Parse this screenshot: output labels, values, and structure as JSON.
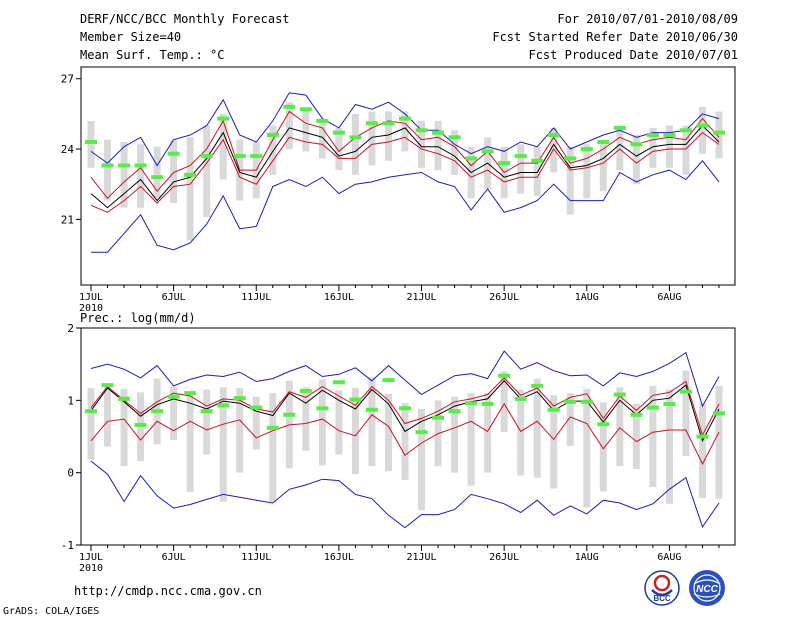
{
  "header": {
    "title": "DERF/NCC/BCC Monthly Forecast",
    "member_size": "Member Size=40",
    "variable": "Mean Surf. Temp.: °C",
    "period": "For 2010/07/01-2010/08/09",
    "started": "Fcst Started Refer Date 2010/06/30",
    "produced": "Fcst Produced Date 2010/07/01"
  },
  "footer": {
    "url": "http://cmdp.ncc.cma.gov.cn",
    "credit": "GrADS: COLA/IGES",
    "logo_bcc": "BCC",
    "logo_ncc": "NCC"
  },
  "colors": {
    "envelope": "#1a1acc",
    "spread": "#cc1122",
    "mean": "#000000",
    "obs": "#55ee44",
    "box": "#d9d9d9"
  },
  "chart_data": [
    {
      "type": "line",
      "title": "Mean Surf. Temp.: °C",
      "x_tick_labels": [
        "1JUL",
        "6JUL",
        "11JUL",
        "16JUL",
        "21JUL",
        "26JUL",
        "1AUG",
        "6AUG"
      ],
      "x_year": "2010",
      "ylim": [
        18.2,
        27.5
      ],
      "yticks": [
        21,
        24,
        27
      ],
      "series": [
        {
          "name": "max",
          "values": [
            23.9,
            23.4,
            24.1,
            24.5,
            23.3,
            24.4,
            24.6,
            25.0,
            26.1,
            24.6,
            24.3,
            25.2,
            26.4,
            26.3,
            25.3,
            24.9,
            25.9,
            25.7,
            26.0,
            25.5,
            24.8,
            24.8,
            24.2,
            23.8,
            24.1,
            23.9,
            24.3,
            24.1,
            24.9,
            24.0,
            24.3,
            24.6,
            24.8,
            24.5,
            24.7,
            24.7,
            24.8,
            25.5,
            25.3
          ]
        },
        {
          "name": "upper",
          "values": [
            22.8,
            21.9,
            22.6,
            23.2,
            22.2,
            23.0,
            23.3,
            24.0,
            25.2,
            23.1,
            23.1,
            24.4,
            25.6,
            25.1,
            24.9,
            23.9,
            24.5,
            24.9,
            25.2,
            25.1,
            24.4,
            24.5,
            24.1,
            23.3,
            23.9,
            23.0,
            23.4,
            23.4,
            24.5,
            23.4,
            23.6,
            24.0,
            24.5,
            24.2,
            24.4,
            24.5,
            24.4,
            25.3,
            24.5
          ]
        },
        {
          "name": "mean",
          "values": [
            22.1,
            21.5,
            22.1,
            22.7,
            21.8,
            22.6,
            22.8,
            23.6,
            24.7,
            23.0,
            22.8,
            23.9,
            24.9,
            24.7,
            24.5,
            23.7,
            23.9,
            24.5,
            24.6,
            24.9,
            24.1,
            24.1,
            23.7,
            23.0,
            23.4,
            22.8,
            23.0,
            23.0,
            24.2,
            23.2,
            23.3,
            23.6,
            24.2,
            23.7,
            24.1,
            24.2,
            24.2,
            25.0,
            24.3
          ]
        },
        {
          "name": "lower",
          "values": [
            21.6,
            21.3,
            21.8,
            22.4,
            21.7,
            22.4,
            22.5,
            23.4,
            24.4,
            22.8,
            22.5,
            23.5,
            24.5,
            24.3,
            24.2,
            23.6,
            23.6,
            24.2,
            24.3,
            24.5,
            24.0,
            23.8,
            23.5,
            22.8,
            23.1,
            22.6,
            22.8,
            22.8,
            24.0,
            23.1,
            23.2,
            23.4,
            24.0,
            23.4,
            23.9,
            24.0,
            24.0,
            24.7,
            24.2
          ]
        },
        {
          "name": "min",
          "values": [
            19.6,
            19.6,
            20.4,
            21.2,
            19.9,
            19.7,
            20.0,
            20.8,
            22.0,
            20.6,
            20.7,
            22.4,
            22.7,
            22.4,
            22.8,
            22.1,
            22.5,
            22.6,
            22.8,
            22.9,
            23.0,
            22.6,
            22.4,
            21.4,
            22.3,
            21.3,
            21.5,
            21.8,
            22.5,
            21.8,
            21.8,
            21.8,
            23.0,
            22.6,
            22.9,
            23.1,
            22.7,
            23.5,
            22.6
          ]
        },
        {
          "name": "obs",
          "values": [
            24.3,
            23.3,
            23.3,
            23.3,
            22.8,
            23.8,
            22.9,
            23.7,
            25.3,
            23.7,
            23.7,
            24.6,
            25.8,
            25.7,
            25.2,
            24.7,
            24.5,
            25.1,
            25.1,
            25.3,
            24.8,
            24.7,
            24.5,
            23.6,
            23.9,
            23.4,
            23.7,
            23.5,
            24.6,
            23.6,
            24.0,
            24.3,
            24.9,
            24.2,
            24.6,
            24.6,
            24.8,
            25.0,
            24.7
          ]
        },
        {
          "name": "box_high",
          "values": [
            25.2,
            24.4,
            24.3,
            24.2,
            24.1,
            24.4,
            24.5,
            25.0,
            25.5,
            24.4,
            24.3,
            25.0,
            26.0,
            25.7,
            25.1,
            24.9,
            25.5,
            25.6,
            25.6,
            25.6,
            25.2,
            25.2,
            24.8,
            24.1,
            24.5,
            24.1,
            24.2,
            24.1,
            24.9,
            24.1,
            24.2,
            24.3,
            25.0,
            24.6,
            24.9,
            25.0,
            25.0,
            25.8,
            25.6
          ]
        },
        {
          "name": "box_low",
          "values": [
            23.2,
            21.8,
            21.5,
            21.5,
            21.9,
            21.7,
            20.1,
            21.1,
            22.7,
            21.8,
            21.9,
            22.9,
            24.0,
            23.9,
            23.6,
            23.1,
            22.9,
            23.3,
            23.5,
            23.9,
            23.2,
            23.1,
            22.9,
            21.9,
            22.3,
            21.9,
            22.1,
            22.0,
            23.0,
            21.2,
            21.9,
            22.2,
            23.1,
            22.5,
            23.2,
            23.2,
            22.9,
            23.8,
            23.6
          ]
        }
      ]
    },
    {
      "type": "line",
      "title": "Prec.: log(mm/d)",
      "x_tick_labels": [
        "1JUL",
        "6JUL",
        "11JUL",
        "16JUL",
        "21JUL",
        "26JUL",
        "1AUG",
        "6AUG"
      ],
      "x_year": "2010",
      "ylim": [
        -1,
        2
      ],
      "yticks": [
        -1,
        0,
        1,
        2
      ],
      "series": [
        {
          "name": "max",
          "values": [
            1.44,
            1.5,
            1.43,
            1.31,
            1.48,
            1.2,
            1.29,
            1.35,
            1.33,
            1.39,
            1.26,
            1.3,
            1.4,
            1.48,
            1.33,
            1.36,
            1.45,
            1.27,
            1.48,
            1.28,
            1.08,
            1.21,
            1.34,
            1.37,
            1.3,
            1.68,
            1.43,
            1.52,
            1.41,
            1.34,
            1.35,
            1.2,
            1.38,
            1.33,
            1.4,
            1.51,
            1.66,
            0.92,
            1.33
          ]
        },
        {
          "name": "upper",
          "values": [
            0.9,
            1.19,
            1.0,
            0.82,
            0.98,
            1.1,
            1.06,
            0.92,
            1.02,
            1.0,
            0.88,
            0.84,
            1.12,
            1.04,
            1.19,
            1.06,
            0.93,
            1.19,
            1.0,
            0.68,
            0.75,
            0.85,
            0.98,
            1.02,
            1.08,
            1.31,
            1.07,
            1.17,
            0.92,
            1.04,
            1.09,
            0.75,
            1.06,
            0.86,
            1.07,
            1.11,
            1.26,
            0.52,
            0.95
          ]
        },
        {
          "name": "mean",
          "values": [
            0.86,
            1.17,
            0.98,
            0.78,
            0.94,
            1.02,
            0.96,
            0.88,
            0.99,
            0.96,
            0.85,
            0.79,
            1.1,
            0.96,
            1.14,
            1.0,
            0.88,
            1.15,
            0.95,
            0.57,
            0.71,
            0.8,
            0.92,
            0.98,
            1.02,
            1.27,
            1.02,
            1.12,
            0.86,
            0.99,
            0.99,
            0.7,
            1.0,
            0.8,
            1.0,
            1.03,
            1.21,
            0.44,
            0.88
          ]
        },
        {
          "name": "lower",
          "values": [
            0.44,
            0.71,
            0.74,
            0.45,
            0.71,
            0.58,
            0.71,
            0.59,
            0.67,
            0.73,
            0.48,
            0.58,
            0.66,
            0.68,
            0.74,
            0.58,
            0.51,
            0.8,
            0.64,
            0.24,
            0.41,
            0.54,
            0.62,
            0.71,
            0.57,
            0.95,
            0.57,
            0.71,
            0.46,
            0.77,
            0.68,
            0.33,
            0.62,
            0.43,
            0.56,
            0.59,
            0.59,
            0.12,
            0.56
          ]
        },
        {
          "name": "min",
          "values": [
            0.16,
            -0.02,
            -0.4,
            -0.04,
            -0.32,
            -0.49,
            -0.44,
            -0.37,
            -0.3,
            -0.34,
            -0.38,
            -0.42,
            -0.23,
            -0.17,
            -0.09,
            -0.11,
            -0.3,
            -0.36,
            -0.59,
            -0.76,
            -0.58,
            -0.58,
            -0.51,
            -0.3,
            -0.36,
            -0.43,
            -0.55,
            -0.38,
            -0.59,
            -0.46,
            -0.57,
            -0.38,
            -0.42,
            -0.51,
            -0.43,
            -0.23,
            -0.07,
            -0.75,
            -0.42
          ]
        },
        {
          "name": "obs",
          "values": [
            0.85,
            1.21,
            1.02,
            0.66,
            0.85,
            1.05,
            1.1,
            0.85,
            0.93,
            1.03,
            0.9,
            0.62,
            0.8,
            1.13,
            0.89,
            1.25,
            1.01,
            0.87,
            1.28,
            0.89,
            0.56,
            0.76,
            0.85,
            0.96,
            0.95,
            1.34,
            1.02,
            1.2,
            0.87,
            0.98,
            0.98,
            0.67,
            1.08,
            0.8,
            0.9,
            0.95,
            1.12,
            0.5,
            0.82
          ]
        },
        {
          "name": "box_high",
          "values": [
            1.17,
            1.18,
            1.16,
            1.11,
            1.3,
            1.19,
            1.1,
            1.15,
            1.18,
            1.17,
            1.05,
            1.1,
            1.27,
            1.18,
            1.29,
            1.14,
            1.17,
            1.32,
            1.09,
            0.96,
            0.88,
            1.0,
            1.05,
            1.1,
            1.1,
            1.4,
            1.15,
            1.3,
            1.07,
            1.1,
            1.16,
            0.97,
            1.18,
            0.95,
            1.2,
            1.15,
            1.41,
            0.96,
            1.2
          ]
        },
        {
          "name": "box_low",
          "values": [
            0.18,
            0.36,
            0.09,
            0.16,
            0.39,
            0.45,
            -0.27,
            0.25,
            -0.4,
            0.0,
            0.32,
            -0.42,
            0.06,
            0.3,
            0.1,
            0.25,
            -0.02,
            0.09,
            0.02,
            -0.1,
            -0.52,
            0.09,
            0.0,
            -0.18,
            0.0,
            0.56,
            -0.04,
            -0.07,
            -0.22,
            0.37,
            -0.48,
            -0.26,
            0.09,
            0.05,
            -0.2,
            -0.43,
            0.23,
            -0.35,
            -0.36
          ]
        }
      ]
    }
  ]
}
